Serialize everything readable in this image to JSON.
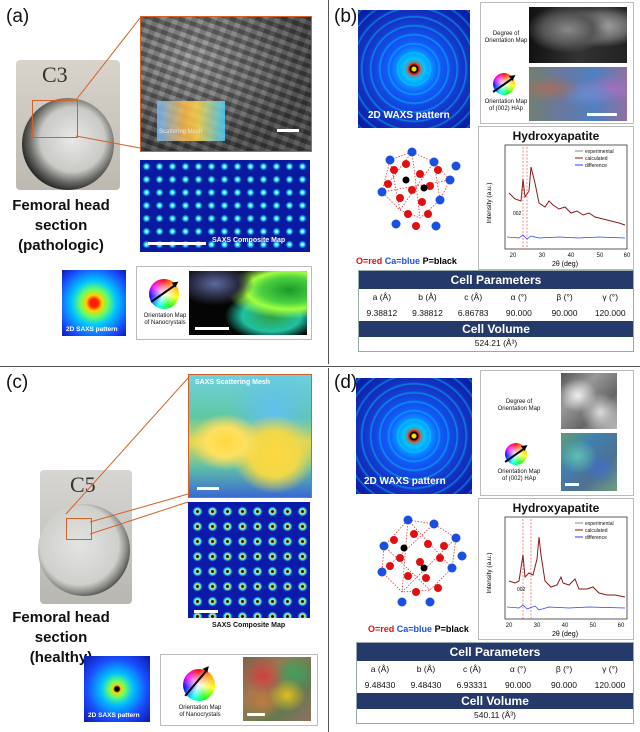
{
  "panels": {
    "a": {
      "label": "(a)",
      "sample_label": "C3",
      "caption_lines": [
        "Femoral head",
        "section",
        "(pathologic)"
      ],
      "mesh_label": "Scattering Mesh",
      "composite_label": "SAXS Composite Map",
      "saxs_pattern_label": "2D SAXS pattern",
      "orientation_label_lines": [
        "Orientation Map",
        "of Nanocrystals"
      ]
    },
    "b": {
      "label": "(b)",
      "waxs_label": "2D WAXS pattern",
      "degree_label_lines": [
        "Degree of",
        "Orientation Map"
      ],
      "orientation_label_lines": [
        "Orientation Map",
        "of (002) HAp"
      ],
      "atom_legend": {
        "o": "O=red",
        "ca": "Ca=blue",
        "p": "P=black"
      },
      "xrd": {
        "title": "Hydroxyapatite",
        "ylabel": "Intensity (a.u.)",
        "xlabel": "2θ (deg)",
        "xticks": [
          "20",
          "30",
          "40",
          "50",
          "60"
        ],
        "peak_label": "002",
        "legend": [
          "experimental",
          "calculated",
          "difference"
        ]
      },
      "table": {
        "header": "Cell Parameters",
        "columns": [
          "a (Å)",
          "b (Å)",
          "c (Å)",
          "α (°)",
          "β (°)",
          "γ (°)"
        ],
        "values": [
          "9.38812",
          "9.38812",
          "6.86783",
          "90.000",
          "90.000",
          "120.000"
        ],
        "volume_header": "Cell Volume",
        "volume_value": "524.21 (Å³)"
      }
    },
    "c": {
      "label": "(c)",
      "sample_label": "C5",
      "caption_lines": [
        "Femoral head",
        "section",
        "(healthy)"
      ],
      "mesh_label": "SAXS Scattering Mesh",
      "composite_label": "SAXS Composite Map",
      "saxs_pattern_label": "2D SAXS pattern",
      "orientation_label_lines": [
        "Orientation Map",
        "of Nanocrystals"
      ]
    },
    "d": {
      "label": "(d)",
      "waxs_label": "2D WAXS pattern",
      "degree_label_lines": [
        "Degree of",
        "Orientation Map"
      ],
      "orientation_label_lines": [
        "Orientation Map",
        "of (002) HAp"
      ],
      "atom_legend": {
        "o": "O=red",
        "ca": "Ca=blue",
        "p": "P=black"
      },
      "xrd": {
        "title": "Hydroxyapatite",
        "ylabel": "Intensity (a.u.)",
        "xlabel": "2θ (deg)",
        "xticks": [
          "20",
          "30",
          "40",
          "50",
          "60"
        ],
        "peak_label": "002",
        "legend": [
          "experimental",
          "calculated",
          "difference"
        ]
      },
      "table": {
        "header": "Cell Parameters",
        "columns": [
          "a (Å)",
          "b (Å)",
          "c (Å)",
          "α (°)",
          "β (°)",
          "γ (°)"
        ],
        "values": [
          "9.48430",
          "9.48430",
          "6.93331",
          "90.000",
          "90.000",
          "120.000"
        ],
        "volume_header": "Cell Volume",
        "volume_value": "540.11 (Å³)"
      }
    }
  },
  "colors": {
    "table_header": "#253a6a",
    "oxygen": "#e01010",
    "calcium": "#1a50e0",
    "phosphorus": "#000000",
    "experimental": "#888888",
    "calculated": "#8b1a1a",
    "difference": "#2040ff"
  }
}
